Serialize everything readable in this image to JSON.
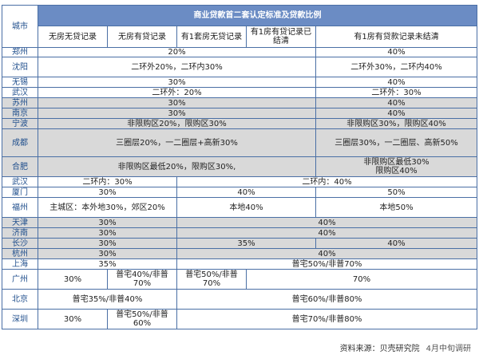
{
  "table": {
    "title": "商业贷款首二套认定标准及贷款比例",
    "city_header": "城市",
    "col_headers": [
      "无房无贷记录",
      "无房有贷记录",
      "有1套房无贷记录",
      "有1房有贷记录已结清",
      "有1房有贷款记录未结清"
    ],
    "rows": [
      {
        "city": "郑州",
        "cells": [
          "20%",
          "40%"
        ]
      },
      {
        "city": "沈阳",
        "cells": [
          "二环外20%，二环内30%",
          "二环外30%，二环内40%"
        ]
      },
      {
        "city": "无锡",
        "cells": [
          "30%",
          "40%"
        ]
      },
      {
        "city": "武汉",
        "cells": [
          "二环外：20%",
          "二环外：30%"
        ]
      },
      {
        "city": "苏州",
        "cells": [
          "30%",
          "40%"
        ]
      },
      {
        "city": "南京",
        "cells": [
          "30%",
          "40%"
        ]
      },
      {
        "city": "宁波",
        "cells": [
          "非限购区20%，限购区30%",
          "非限购区30%，限购区40%"
        ]
      },
      {
        "city": "成都",
        "cells": [
          "三圈层20%，一二圈层+高新30%",
          "三圈层30%，一二圈层、高新50%"
        ]
      },
      {
        "city": "合肥",
        "cells": [
          "非限购区最低20%，限购区30%,",
          "非限购区最低30%",
          "限购区40%"
        ]
      },
      {
        "city": "武汉",
        "cells": [
          "二环内：30%",
          "二环内：40%"
        ]
      },
      {
        "city": "厦门",
        "cells": [
          "30%",
          "40%",
          "50%"
        ]
      },
      {
        "city": "福州",
        "cells": [
          "主城区：本外地30%，郊区20%",
          "本地40%",
          "本地50%"
        ]
      },
      {
        "city": "天津",
        "cells": [
          "30%",
          "40%"
        ]
      },
      {
        "city": "济南",
        "cells": [
          "30%",
          "40%"
        ]
      },
      {
        "city": "长沙",
        "cells": [
          "30%",
          "35%",
          "40%"
        ]
      },
      {
        "city": "杭州",
        "cells": [
          "30%",
          "40%"
        ]
      },
      {
        "city": "上海",
        "cells": [
          "35%",
          "普宅50%/非普70%"
        ]
      },
      {
        "city": "广州",
        "cells": [
          "30%",
          "普宅40%/非普70%",
          "普宅50%/非普70%",
          "70%"
        ]
      },
      {
        "city": "北京",
        "cells": [
          "普宅35%/非普40%",
          "普宅60%/非普80%"
        ]
      },
      {
        "city": "深圳",
        "cells": [
          "30%",
          "普宅50%/非普60%",
          "普宅70%/非普80%"
        ]
      }
    ]
  },
  "footer": {
    "source": "资料来源：贝壳研究院",
    "date": "4月中旬调研"
  },
  "colors": {
    "header_bg": "#6b8cc4",
    "grid_line": "#4a6fa5",
    "gray_row": "#d9d9d9",
    "city_text": "#1f4e8c"
  }
}
